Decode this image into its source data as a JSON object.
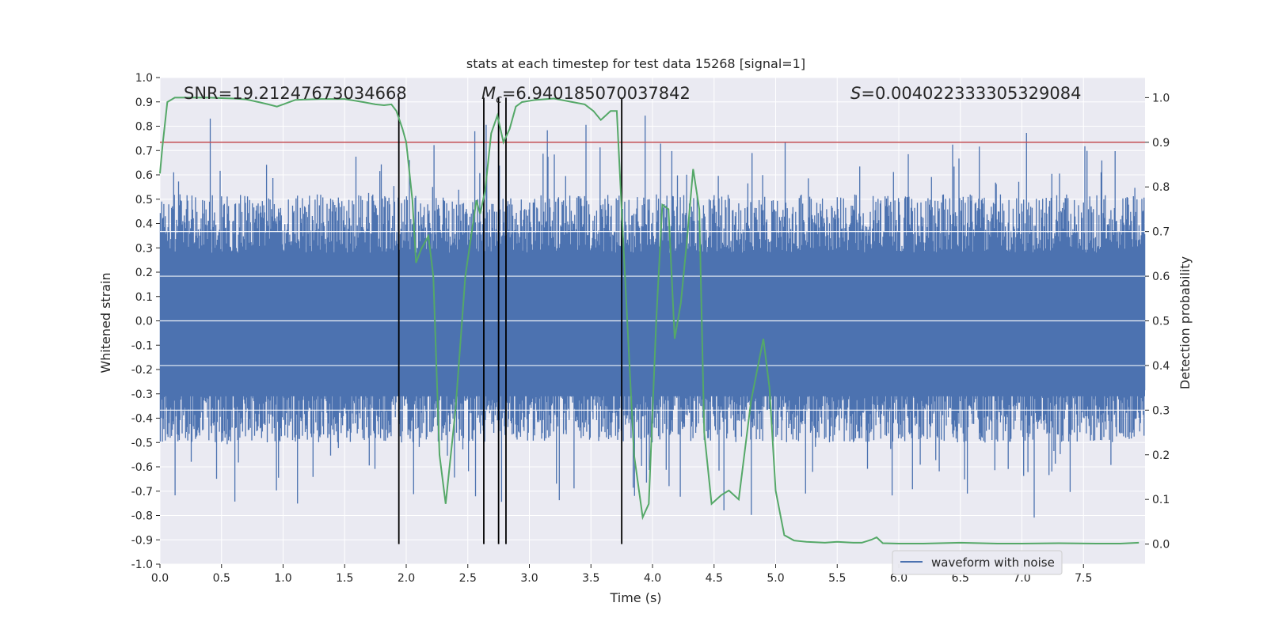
{
  "chart_data": {
    "type": "line",
    "title": "stats at each timestep for test data 15268 [signal=1]",
    "xlabel": "Time (s)",
    "ylabel_left": "Whitened strain",
    "ylabel_right": "Detection probability",
    "xlim": [
      0.0,
      8.0
    ],
    "ylim_left": [
      -1.0,
      1.0
    ],
    "ylim_right": [
      -0.045,
      1.045
    ],
    "x_ticks": [
      "0.0",
      "0.5",
      "1.0",
      "1.5",
      "2.0",
      "2.5",
      "3.0",
      "3.5",
      "4.0",
      "4.5",
      "5.0",
      "5.5",
      "6.0",
      "6.5",
      "7.0",
      "7.5"
    ],
    "y_left_ticks": [
      "-1.0",
      "-0.9",
      "-0.8",
      "-0.7",
      "-0.6",
      "-0.5",
      "-0.4",
      "-0.3",
      "-0.2",
      "-0.1",
      "0.0",
      "0.1",
      "0.2",
      "0.3",
      "0.4",
      "0.5",
      "0.6",
      "0.7",
      "0.8",
      "0.9",
      "1.0"
    ],
    "y_right_ticks": [
      "0.0",
      "0.1",
      "0.2",
      "0.3",
      "0.4",
      "0.5",
      "0.6",
      "0.7",
      "0.8",
      "0.9",
      "1.0"
    ],
    "grid": true,
    "legend_position": "lower-right",
    "annotations": {
      "snr": "SNR=19.21247673034668",
      "mc_symbol": "M",
      "mc_sub": "c",
      "mc_value": "=6.940185070037842",
      "s_symbol": "S",
      "s_value": "=0.004022333305329084"
    },
    "series": [
      {
        "name": "waveform with noise",
        "axis": "left",
        "color": "#4c72b0",
        "style": "dense noisy waveform",
        "typical_abs_amplitude": 0.3,
        "max": 0.92,
        "min": -0.91
      },
      {
        "axis": "right",
        "color": "#55a868",
        "x": [
          0.0,
          0.02,
          0.06,
          0.12,
          0.2,
          0.3,
          0.4,
          0.5,
          0.6,
          0.7,
          0.8,
          0.88,
          0.95,
          1.0,
          1.1,
          1.3,
          1.5,
          1.65,
          1.75,
          1.82,
          1.88,
          1.92,
          1.97,
          2.0,
          2.05,
          2.08,
          2.12,
          2.18,
          2.22,
          2.27,
          2.32,
          2.4,
          2.48,
          2.57,
          2.6,
          2.64,
          2.69,
          2.74,
          2.79,
          2.84,
          2.89,
          2.94,
          3.05,
          3.2,
          3.35,
          3.45,
          3.52,
          3.58,
          3.62,
          3.66,
          3.71,
          3.76,
          3.85,
          3.92,
          3.97,
          4.03,
          4.08,
          4.13,
          4.18,
          4.23,
          4.28,
          4.33,
          4.38,
          4.42,
          4.48,
          4.56,
          4.62,
          4.7,
          4.8,
          4.9,
          4.95,
          5.0,
          5.07,
          5.15,
          5.25,
          5.4,
          5.5,
          5.57,
          5.63,
          5.7,
          5.78,
          5.82,
          5.87,
          6.0,
          6.2,
          6.5,
          6.8,
          7.0,
          7.3,
          7.6,
          7.8,
          7.95
        ],
        "y": [
          0.83,
          0.89,
          0.99,
          1.0,
          1.0,
          1.0,
          1.0,
          0.999,
          0.998,
          0.996,
          0.99,
          0.985,
          0.98,
          0.985,
          0.995,
          0.997,
          0.997,
          0.99,
          0.985,
          0.983,
          0.985,
          0.97,
          0.93,
          0.9,
          0.77,
          0.63,
          0.66,
          0.69,
          0.6,
          0.2,
          0.09,
          0.3,
          0.6,
          0.77,
          0.74,
          0.79,
          0.92,
          0.96,
          0.9,
          0.93,
          0.98,
          0.99,
          0.995,
          0.998,
          0.99,
          0.985,
          0.97,
          0.95,
          0.96,
          0.97,
          0.97,
          0.69,
          0.2,
          0.06,
          0.09,
          0.5,
          0.76,
          0.75,
          0.46,
          0.54,
          0.68,
          0.84,
          0.75,
          0.25,
          0.09,
          0.11,
          0.12,
          0.1,
          0.32,
          0.46,
          0.35,
          0.12,
          0.02,
          0.008,
          0.005,
          0.003,
          0.005,
          0.004,
          0.003,
          0.003,
          0.01,
          0.015,
          0.002,
          0.001,
          0.001,
          0.003,
          0.001,
          0.001,
          0.002,
          0.001,
          0.001,
          0.003
        ]
      }
    ],
    "hlines": [
      {
        "axis": "right",
        "y": 0.9,
        "color": "#c44e52"
      }
    ],
    "vlines": [
      {
        "x": 1.94,
        "color": "#000000"
      },
      {
        "x": 2.63,
        "color": "#000000"
      },
      {
        "x": 2.75,
        "color": "#000000"
      },
      {
        "x": 2.81,
        "color": "#000000"
      },
      {
        "x": 3.75,
        "color": "#000000"
      }
    ]
  },
  "colors": {
    "plot_background": "#eaeaf2",
    "grid": "#ffffff",
    "waveform": "#4c72b0",
    "probability": "#55a868",
    "threshold": "#c44e52",
    "markers": "#000000"
  }
}
